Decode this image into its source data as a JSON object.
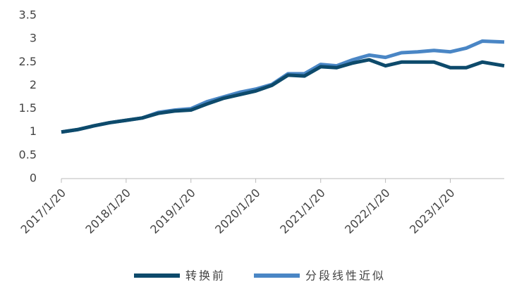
{
  "chart_data": {
    "type": "line",
    "x": [
      "2017/1/20",
      "2017/4/20",
      "2017/7/20",
      "2017/10/20",
      "2018/1/20",
      "2018/4/20",
      "2018/7/20",
      "2018/10/20",
      "2019/1/20",
      "2019/4/20",
      "2019/7/20",
      "2019/10/20",
      "2020/1/20",
      "2020/4/20",
      "2020/7/20",
      "2020/10/20",
      "2021/1/20",
      "2021/4/20",
      "2021/7/20",
      "2021/10/20",
      "2022/1/20",
      "2022/4/20",
      "2022/7/20",
      "2022/10/20",
      "2023/1/20",
      "2023/4/20",
      "2023/7/20",
      "2023/11/20"
    ],
    "series": [
      {
        "name": "转换前",
        "color": "#0d4a6b",
        "values": [
          1.0,
          1.05,
          1.13,
          1.2,
          1.25,
          1.3,
          1.4,
          1.45,
          1.47,
          1.6,
          1.72,
          1.8,
          1.88,
          2.0,
          2.22,
          2.2,
          2.4,
          2.38,
          2.48,
          2.55,
          2.42,
          2.5,
          2.5,
          2.5,
          2.38,
          2.38,
          2.5,
          2.42
        ]
      },
      {
        "name": "分段线性近似",
        "color": "#4a86c5",
        "values": [
          1.0,
          1.05,
          1.13,
          1.2,
          1.25,
          1.3,
          1.42,
          1.47,
          1.5,
          1.65,
          1.75,
          1.85,
          1.92,
          2.02,
          2.25,
          2.25,
          2.45,
          2.42,
          2.55,
          2.65,
          2.6,
          2.7,
          2.72,
          2.75,
          2.72,
          2.8,
          2.95,
          2.93
        ]
      }
    ],
    "xlim": [
      "2017/1/20",
      "2023/11/20"
    ],
    "xticks": [
      "2017/1/20",
      "2018/1/20",
      "2019/1/20",
      "2020/1/20",
      "2021/1/20",
      "2022/1/20",
      "2023/1/20"
    ],
    "ylim": [
      0,
      3.5
    ],
    "yticks": [
      0,
      0.5,
      1,
      1.5,
      2,
      2.5,
      3,
      3.5
    ],
    "legend": "bottom"
  }
}
